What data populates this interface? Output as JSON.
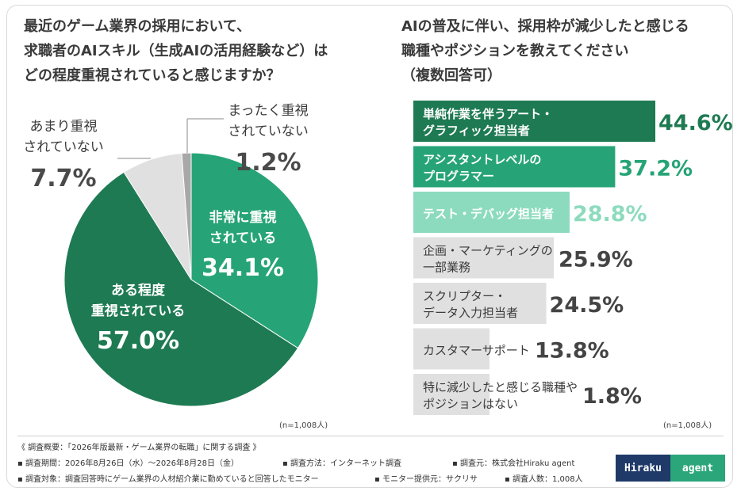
{
  "left_question": [
    "最近のゲーム業界の採用において、",
    "求職者のAIスキル（生成AIの活用経験など）は",
    "どの程度重視されていると感じますか？"
  ],
  "right_question": [
    "AIの普及に伴い、採用枠が減少したと感じる",
    "職種やポジションを教えてください",
    "（複数回答可）"
  ],
  "colors": {
    "dark_green": "#1e7a52",
    "mid_green": "#26a477",
    "light_green": "#8ddbbf",
    "light_gray": "#e0e0e0",
    "gray": "#a8a8a8",
    "text": "#3a3a3a"
  },
  "chart_data": [
    {
      "type": "pie",
      "slices": [
        {
          "label": "非常に重視されている",
          "label_lines": [
            "非常に重視",
            "されている"
          ],
          "value": 34.1,
          "value_text": "34.1%",
          "color": "#26a477"
        },
        {
          "label": "ある程度重視されている",
          "label_lines": [
            "ある程度",
            "重視されている"
          ],
          "value": 57.0,
          "value_text": "57.0%",
          "color": "#1e7a52"
        },
        {
          "label": "あまり重視されていない",
          "label_lines": [
            "あまり重視",
            "されていない"
          ],
          "value": 7.7,
          "value_text": "7.7%",
          "color": "#e0e0e0"
        },
        {
          "label": "まったく重視されていない",
          "label_lines": [
            "まったく重視",
            "されていない"
          ],
          "value": 1.2,
          "value_text": "1.2%",
          "color": "#a8a8a8"
        }
      ],
      "n_note": "(n=1,008人)"
    },
    {
      "type": "bar",
      "orientation": "horizontal",
      "xlim": [
        0,
        50
      ],
      "categories": [
        [
          "単純作業を伴うアート・",
          "グラフィック担当者"
        ],
        [
          "アシスタントレベルの",
          "プログラマー"
        ],
        [
          "テスト・デバッグ担当者"
        ],
        [
          "企画・マーケティングの",
          "一部業務"
        ],
        [
          "スクリプター・",
          "データ入力担当者"
        ],
        [
          "カスタマーサポート"
        ],
        [
          "特に減少したと感じる職種や",
          "ポジションはない"
        ]
      ],
      "values": [
        44.6,
        37.2,
        28.8,
        25.9,
        24.5,
        13.8,
        1.8
      ],
      "value_labels": [
        "44.6%",
        "37.2%",
        "28.8%",
        "25.9%",
        "24.5%",
        "13.8%",
        "1.8%"
      ],
      "bar_colors": [
        "#1e7a52",
        "#26a477",
        "#8ddbbf",
        "#e0e0e0",
        "#e0e0e0",
        "#e0e0e0",
        "#e0e0e0"
      ],
      "label_colors": [
        "#ffffff",
        "#ffffff",
        "#ffffff",
        "#3a3a3a",
        "#3a3a3a",
        "#3a3a3a",
        "#3a3a3a"
      ],
      "value_colors": [
        "#1e7a52",
        "#26a477",
        "#8ddbbf",
        "#444444",
        "#444444",
        "#444444",
        "#444444"
      ],
      "n_note": "(n=1,008人)"
    }
  ],
  "footer": {
    "summary": "《 調査概要：「2026年版最新・ゲーム業界の転職」に関する調査 》",
    "period": "▪ 調査期間：2026年8月26日（水）〜2026年8月28日（金）",
    "method": "▪ 調査方法：インターネット調査",
    "source": "▪ 調査元：株式会社Hiraku agent",
    "target": "▪ 調査対象：調査回答時にゲーム業界の人材紹介業に勤めていると回答したモニター",
    "provider": "▪ モニター提供元：サクリサ",
    "count": "▪ 調査人数：1,008人"
  },
  "logo": {
    "left": "Hiraku",
    "right": "agent"
  }
}
